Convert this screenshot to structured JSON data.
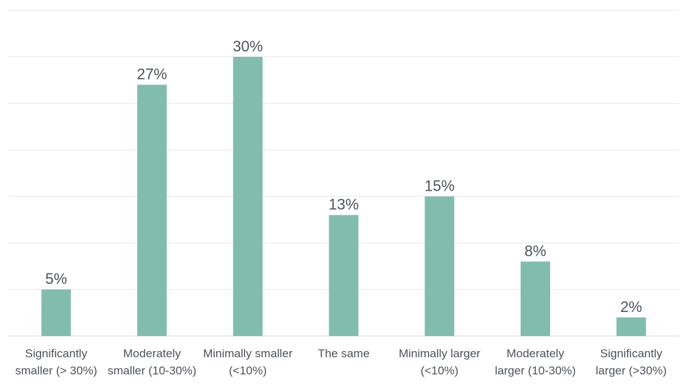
{
  "chart_data": {
    "type": "bar",
    "categories": [
      [
        "Significantly",
        "smaller (> 30%)"
      ],
      [
        "Moderately",
        "smaller (10-30%)"
      ],
      [
        "Minimally smaller",
        "(<10%)"
      ],
      [
        "The same"
      ],
      [
        "Minimally larger",
        "(<10%)"
      ],
      [
        "Moderately",
        "larger (10-30%)"
      ],
      [
        "Significantly",
        "larger (>30%)"
      ]
    ],
    "values": [
      5,
      27,
      30,
      13,
      15,
      8,
      2
    ],
    "data_labels": [
      "5%",
      "27%",
      "30%",
      "13%",
      "15%",
      "8%",
      "2%"
    ],
    "title": "",
    "xlabel": "",
    "ylabel": "",
    "ylim": [
      0,
      35
    ],
    "grid": true,
    "legend": "none",
    "bar_color": "#82bcae",
    "label_color": "#4d5359",
    "grid_color": "#e6e6e6"
  }
}
